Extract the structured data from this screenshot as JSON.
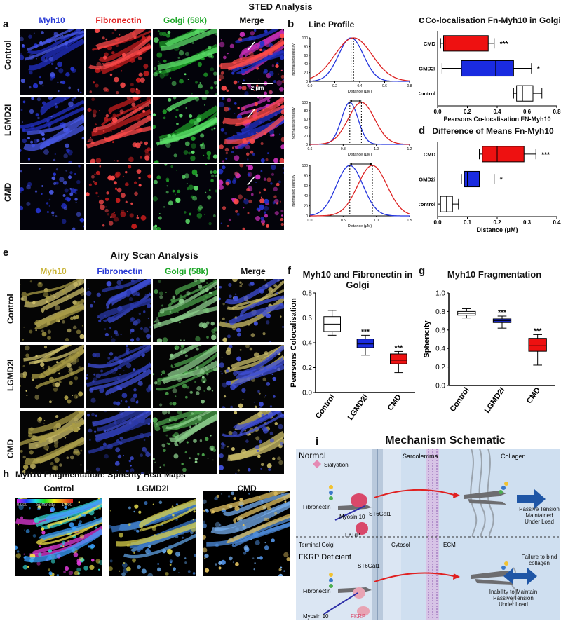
{
  "sted": {
    "title": "STED Analysis",
    "letter_a": "a",
    "letter_b": "b",
    "letter_c": "c",
    "letter_d": "d",
    "cols": [
      {
        "label": "Myh10",
        "color": "#2a3bd6"
      },
      {
        "label": "Fibronectin",
        "color": "#e02020"
      },
      {
        "label": "Golgi (58k)",
        "color": "#1fa82a"
      },
      {
        "label": "Merge",
        "color": "#111111"
      }
    ],
    "rows": [
      "Control",
      "LGMD2I",
      "CMD"
    ],
    "scalebar": "2 μm",
    "line_profile_title": "Line Profile"
  },
  "chart_data": [
    {
      "type": "line",
      "panel": "b-top",
      "ylabel": "Normalised Intensity",
      "xlabel": "Distance (μM)",
      "xlim": [
        0,
        0.8
      ],
      "ylim": [
        0,
        100
      ],
      "xticks": [
        "0.0",
        "0.2",
        "0.4",
        "0.6",
        "0.8"
      ],
      "yticks": [
        "0",
        "20",
        "40",
        "60",
        "80",
        "100"
      ],
      "series": [
        {
          "color": "#2233dd",
          "peak": 0.33,
          "sigma": 0.1
        },
        {
          "color": "#dd2222",
          "peak": 0.35,
          "sigma": 0.15
        }
      ]
    },
    {
      "type": "line",
      "panel": "b-mid",
      "ylabel": "Normalised Intensity",
      "xlabel": "Distance (μM)",
      "xlim": [
        0.6,
        1.2
      ],
      "ylim": [
        0,
        100
      ],
      "xticks": [
        "0.6",
        "0.8",
        "1.0",
        "1.2"
      ],
      "yticks": [
        "0",
        "20",
        "40",
        "60",
        "80",
        "100"
      ],
      "series": [
        {
          "color": "#2233dd",
          "peak": 0.84,
          "sigma": 0.05
        },
        {
          "color": "#dd2222",
          "peak": 0.91,
          "sigma": 0.08
        }
      ]
    },
    {
      "type": "line",
      "panel": "b-bot",
      "ylabel": "Normalised Intensity",
      "xlabel": "Distance (μM)",
      "xlim": [
        0,
        1.5
      ],
      "ylim": [
        0,
        100
      ],
      "xticks": [
        "0.0",
        "0.5",
        "1.0",
        "1.5"
      ],
      "yticks": [
        "0",
        "20",
        "40",
        "60",
        "80",
        "100"
      ],
      "series": [
        {
          "color": "#2233dd",
          "peak": 0.6,
          "sigma": 0.2
        },
        {
          "color": "#dd2222",
          "peak": 0.94,
          "sigma": 0.22
        }
      ]
    },
    {
      "type": "box",
      "panel": "c",
      "title": "Co-localisation Fn-Myh10 in Golgi",
      "xlabel": "Pearsons Co-localisation FN-Myh10",
      "xlim": [
        0,
        0.8
      ],
      "xticks": [
        "0.0",
        "0.2",
        "0.4",
        "0.6",
        "0.8"
      ],
      "categories": [
        "CMD",
        "LGMD2I",
        "Control"
      ],
      "boxes": [
        {
          "min": 0.02,
          "q1": 0.04,
          "median": 0.05,
          "q3": 0.34,
          "max": 0.38,
          "color": "#ee1111",
          "sig": "***"
        },
        {
          "min": 0.03,
          "q1": 0.16,
          "median": 0.39,
          "q3": 0.51,
          "max": 0.63,
          "color": "#1a2be0",
          "sig": "*"
        },
        {
          "min": 0.51,
          "q1": 0.53,
          "median": 0.57,
          "q3": 0.64,
          "max": 0.7,
          "color": "#ffffff",
          "sig": ""
        }
      ]
    },
    {
      "type": "box",
      "panel": "d",
      "title": "Difference of Means Fn-Myh10",
      "xlabel": "Distance (μM)",
      "xlim": [
        0,
        0.4
      ],
      "xticks": [
        "0.0",
        "0.1",
        "0.2",
        "0.3",
        "0.4"
      ],
      "categories": [
        "CMD",
        "LGMD2i",
        "Control"
      ],
      "boxes": [
        {
          "min": 0.14,
          "q1": 0.15,
          "median": 0.2,
          "q3": 0.29,
          "max": 0.33,
          "color": "#ee1111",
          "sig": "***"
        },
        {
          "min": 0.08,
          "q1": 0.09,
          "median": 0.1,
          "q3": 0.14,
          "max": 0.19,
          "color": "#1a2be0",
          "sig": "*"
        },
        {
          "min": 0.0,
          "q1": 0.01,
          "median": 0.03,
          "q3": 0.05,
          "max": 0.07,
          "color": "#ffffff",
          "sig": ""
        }
      ]
    },
    {
      "type": "box",
      "panel": "f",
      "title": "Myh10 and Fibronectin in Golgi",
      "ylabel": "Pearsons Colocalisation",
      "ylim": [
        0,
        0.8
      ],
      "yticks": [
        "0.0",
        "0.2",
        "0.4",
        "0.6",
        "0.8"
      ],
      "categories": [
        "Control",
        "LGMD2I",
        "CMD"
      ],
      "boxes": [
        {
          "min": 0.46,
          "q1": 0.49,
          "median": 0.55,
          "q3": 0.61,
          "max": 0.66,
          "color": "#ffffff",
          "sig": ""
        },
        {
          "min": 0.3,
          "q1": 0.36,
          "median": 0.39,
          "q3": 0.43,
          "max": 0.46,
          "color": "#1a2be0",
          "sig": "***"
        },
        {
          "min": 0.16,
          "q1": 0.23,
          "median": 0.26,
          "q3": 0.31,
          "max": 0.33,
          "color": "#ee1111",
          "sig": "***"
        }
      ]
    },
    {
      "type": "box",
      "panel": "g",
      "title": "Myh10 Fragmentation",
      "ylabel": "Sphericity",
      "ylim": [
        0,
        1.0
      ],
      "yticks": [
        "0.0",
        "0.2",
        "0.4",
        "0.6",
        "0.8",
        "1.0"
      ],
      "categories": [
        "Control",
        "LGMD2I",
        "CMD"
      ],
      "boxes": [
        {
          "min": 0.73,
          "q1": 0.76,
          "median": 0.78,
          "q3": 0.8,
          "max": 0.83,
          "color": "#ffffff",
          "sig": ""
        },
        {
          "min": 0.62,
          "q1": 0.68,
          "median": 0.7,
          "q3": 0.72,
          "max": 0.75,
          "color": "#1a2be0",
          "sig": "***"
        },
        {
          "min": 0.22,
          "q1": 0.37,
          "median": 0.43,
          "q3": 0.51,
          "max": 0.55,
          "color": "#ee1111",
          "sig": "***"
        }
      ]
    }
  ],
  "airy": {
    "title": "Airy Scan Analysis",
    "letter_e": "e",
    "letter_f": "f",
    "letter_g": "g",
    "cols": [
      {
        "label": "Myh10",
        "color": "#c9b437"
      },
      {
        "label": "Fibronectin",
        "color": "#2a3bd6"
      },
      {
        "label": "Golgi (58k)",
        "color": "#1fa82a"
      },
      {
        "label": "Merge",
        "color": "#111111"
      }
    ],
    "rows": [
      "Control",
      "LGMD2I",
      "CMD"
    ]
  },
  "heat": {
    "letter": "h",
    "title": "Myh10 Fragmentation: Spherity Heat Maps",
    "cols": [
      "Control",
      "LGMD2I",
      "CMD"
    ],
    "legend_min": "0.000",
    "legend_label": "Sphericity",
    "legend_max": "1.000"
  },
  "schematic": {
    "letter": "i",
    "title": "Mechanism Schematic",
    "normal": "Normal",
    "deficient": "FKRP Deficient",
    "sialyation": "Sialyation",
    "sarcolemma": "Sarcolemma",
    "collagen": "Collagen",
    "fibronectin": "Fibronectin",
    "st6gal1": "ST6Gal1",
    "myosin": "Myosin 10",
    "fkrp": "FKRP",
    "passive": "Passive Tension Maintained Under Load",
    "terminal_golgi": "Terminal Golgi",
    "cytosol": "Cytosol",
    "ecm": "ECM",
    "failure": "Failure to bind collagen",
    "inability": "Inability to Maintain Passive Tension Under Load"
  }
}
